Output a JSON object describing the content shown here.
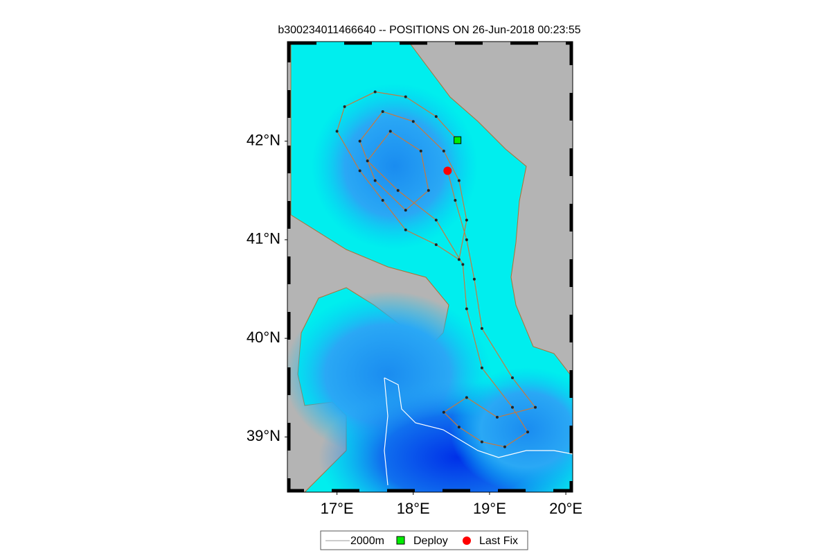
{
  "header": {
    "title": "b300234011466640 -- POSITIONS ON 26-Jun-2018 00:23:55"
  },
  "map": {
    "xlim": [
      16.35,
      20.09
    ],
    "ylim": [
      38.44,
      43.01
    ],
    "lon_ticks": [
      {
        "value": 17,
        "label": "17°E"
      },
      {
        "value": 18,
        "label": "18°E"
      },
      {
        "value": 19,
        "label": "19°E"
      },
      {
        "value": 20,
        "label": "20°E"
      }
    ],
    "lat_ticks": [
      {
        "value": 39,
        "label": "39°N"
      },
      {
        "value": 40,
        "label": "40°N"
      },
      {
        "value": 41,
        "label": "41°N"
      },
      {
        "value": 42,
        "label": "42°N"
      }
    ],
    "track": {
      "color": "#c8783c",
      "lon": [
        18.58,
        18.3,
        17.9,
        17.5,
        17.1,
        17.0,
        17.3,
        17.6,
        17.9,
        18.3,
        18.6,
        18.7,
        18.6,
        18.4,
        18.0,
        17.6,
        17.3,
        17.5,
        17.9,
        18.2,
        18.1,
        17.7,
        17.4,
        17.8,
        18.3,
        18.65,
        18.7,
        18.9,
        19.3,
        19.5,
        19.2,
        18.9,
        18.6,
        18.4,
        18.7,
        19.1,
        19.6,
        19.3,
        18.9,
        18.8,
        18.7,
        18.55,
        18.45
      ],
      "lat": [
        42.01,
        42.25,
        42.45,
        42.5,
        42.35,
        42.1,
        41.7,
        41.4,
        41.1,
        40.95,
        40.8,
        41.2,
        41.6,
        41.9,
        42.2,
        42.3,
        42.0,
        41.6,
        41.3,
        41.5,
        41.9,
        42.1,
        41.8,
        41.5,
        41.2,
        40.75,
        40.3,
        39.7,
        39.3,
        39.05,
        38.9,
        38.95,
        39.1,
        39.25,
        39.4,
        39.2,
        39.3,
        39.6,
        40.1,
        40.6,
        41.0,
        41.4,
        41.7
      ]
    },
    "deploy": {
      "lon": 18.58,
      "lat": 42.01,
      "color": "#00ee00"
    },
    "last_fix": {
      "lon": 18.45,
      "lat": 41.7,
      "color": "#ff0000"
    }
  },
  "legend": {
    "contour": "2000m",
    "deploy": "Deploy",
    "last_fix": "Last Fix"
  }
}
